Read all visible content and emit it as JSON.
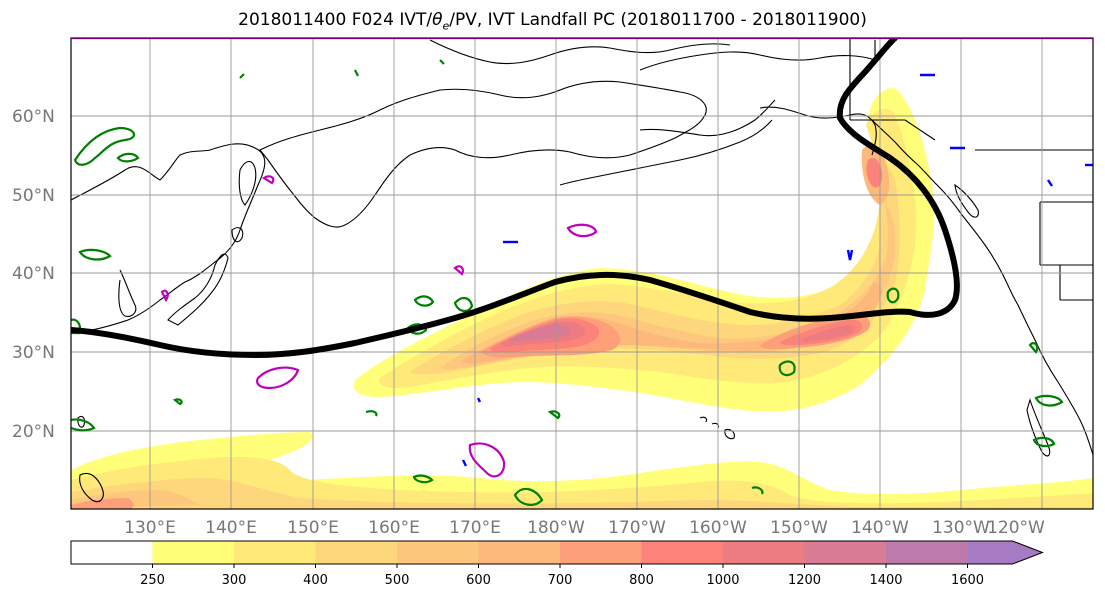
{
  "title_prefix": "2018011400 F024 IVT/",
  "title_theta": "θ",
  "title_theta_sub": "e",
  "title_suffix": "/PV, IVT Landfall PC (2018011700 - 2018011900)",
  "lat_labels": [
    "60°N",
    "50°N",
    "40°N",
    "30°N",
    "20°N"
  ],
  "lon_labels": [
    "130°E",
    "140°E",
    "150°E",
    "160°E",
    "170°E",
    "180°W",
    "170°W",
    "160°W",
    "150°W",
    "140°W",
    "130°W",
    "120°W"
  ],
  "colorbar": {
    "levels": [
      "250",
      "300",
      "400",
      "500",
      "600",
      "700",
      "800",
      "1000",
      "1200",
      "1400",
      "1600"
    ],
    "colors": [
      "#ffffff",
      "#ffff7a",
      "#ffe979",
      "#fed67c",
      "#fdc77d",
      "#fdb97c",
      "#fda07a",
      "#fb8379",
      "#ec7b82",
      "#d97b95",
      "#bd7bab",
      "#a67bc4"
    ]
  },
  "contour_colors": {
    "pv": "#008000",
    "theta_e": "#bf00bf",
    "other": "#0000ff",
    "track": "#000000"
  }
}
